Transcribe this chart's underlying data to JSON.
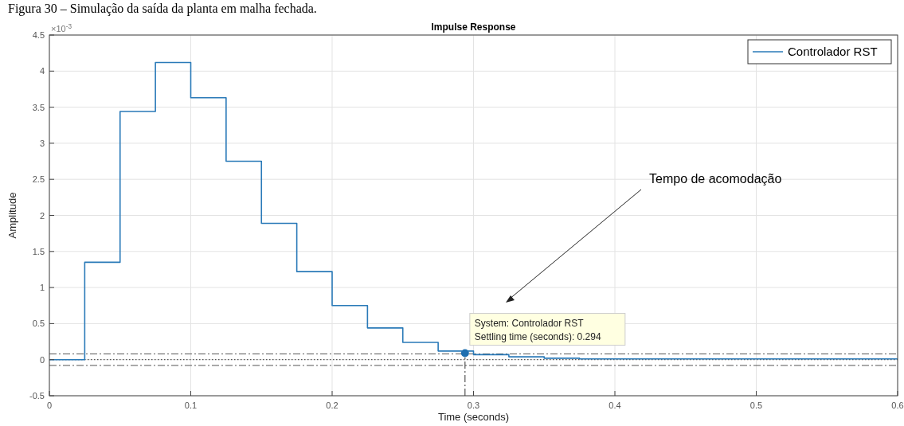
{
  "chart_data": {
    "type": "step",
    "title": "Impulse Response",
    "xlabel": "Time (seconds)",
    "ylabel": "Amplitude",
    "xlim": [
      0,
      0.6
    ],
    "xticks": [
      0,
      0.1,
      0.2,
      0.3,
      0.4,
      0.5,
      0.6
    ],
    "ylim": [
      -0.5,
      4.5
    ],
    "yticks": [
      -0.5,
      0,
      0.5,
      1,
      1.5,
      2,
      2.5,
      3,
      3.5,
      4,
      4.5
    ],
    "grid": true,
    "legend": "top right",
    "series": [
      {
        "name": "Controlador RST",
        "color": "#2a7ab8",
        "x": [
          0,
          0.025,
          0.05,
          0.075,
          0.1,
          0.125,
          0.15,
          0.175,
          0.2,
          0.225,
          0.25,
          0.275,
          0.3,
          0.325,
          0.35,
          0.375,
          0.6
        ],
        "values": [
          0,
          1.35,
          3.44,
          4.12,
          3.63,
          2.75,
          1.89,
          1.22,
          0.75,
          0.44,
          0.24,
          0.12,
          0.07,
          0.04,
          0.02,
          0.01,
          0.01
        ]
      },
      {
        "type": "scatter",
        "marker": "circle",
        "color": "#1f6fb0",
        "x": [
          0.294
        ],
        "values": [
          0.09
        ]
      }
    ],
    "ref_lines": [
      {
        "axis": "y",
        "value": 0.08,
        "color": "#555555",
        "line_style": "dashed"
      },
      {
        "axis": "y",
        "value": -0.08,
        "color": "#555555",
        "line_style": "dashed"
      },
      {
        "axis": "y",
        "value": 0,
        "color": "#333333",
        "line_style": "dotted"
      },
      {
        "axis": "x",
        "value": 0.294,
        "color": "#333333",
        "line_style": "dashed"
      }
    ],
    "annotations": [
      "Figura 30 – Simulação da saída da planta em malha fechada.",
      "×10$^{-3}$",
      {
        "text": "System: Controlador RST\nSettling time (seconds): 0.294",
        "x": 0.294,
        "y": 0.09
      },
      "Tempo de acomodação"
    ]
  }
}
